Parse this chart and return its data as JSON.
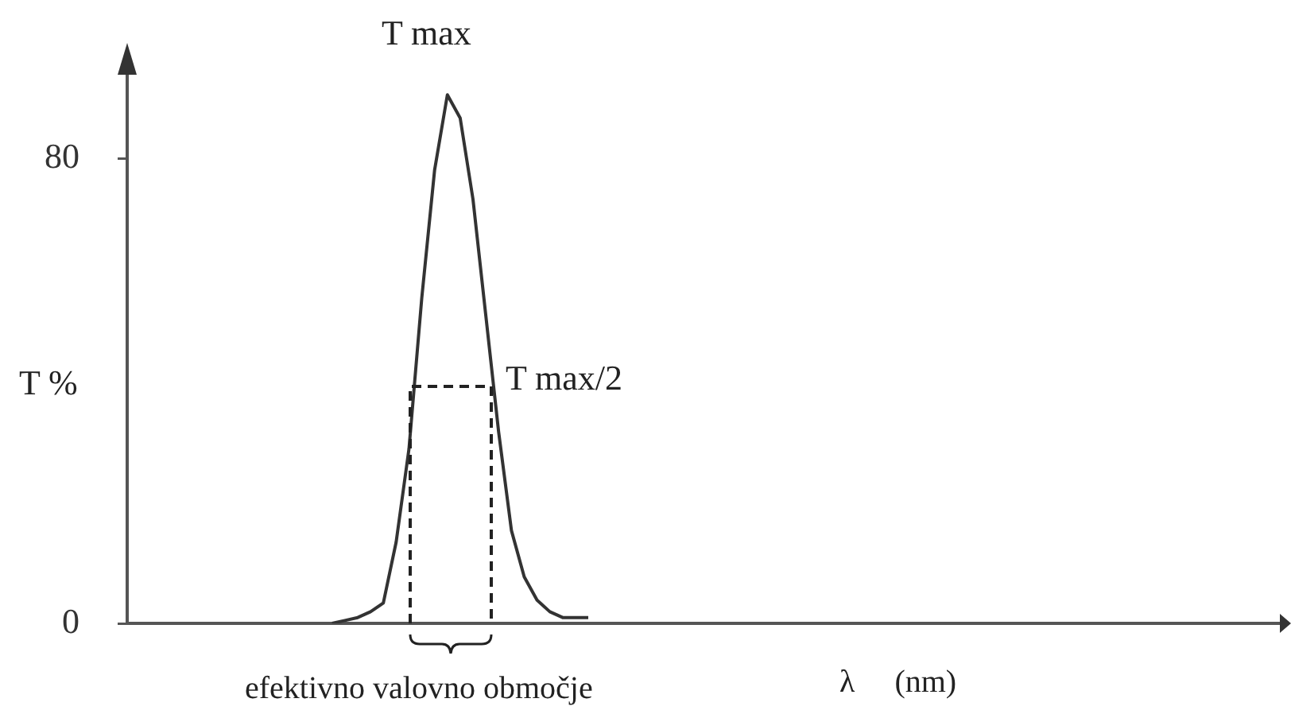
{
  "chart_data": {
    "type": "line",
    "ylabel": "T %",
    "xlabel": "λ     (nm)",
    "annotations": [
      "T max",
      "T max/2",
      "efektivno valovno območje"
    ],
    "categories": [
      null,
      null,
      null,
      null,
      null,
      null,
      null,
      null,
      null,
      null,
      null,
      null,
      null,
      null,
      null,
      null,
      null,
      null,
      null,
      null,
      null,
      null,
      null,
      null,
      null,
      null,
      null,
      null,
      null,
      null,
      null,
      null,
      null,
      null,
      null,
      null,
      null,
      null,
      null,
      null,
      null,
      null,
      null,
      null,
      null,
      null,
      null,
      null,
      null,
      null,
      null,
      null,
      null,
      null,
      null,
      null,
      null,
      null,
      null,
      null,
      null,
      null,
      null,
      null,
      null,
      null,
      null,
      null,
      null,
      null,
      null,
      null,
      null,
      null,
      null,
      null,
      null,
      null,
      null,
      null,
      null,
      null,
      null,
      null,
      null,
      null,
      null,
      null,
      null,
      null,
      null
    ],
    "values": [
      null,
      null,
      null,
      null,
      null,
      null,
      null,
      null,
      null,
      null,
      null,
      null,
      null,
      null,
      null,
      null,
      0,
      0.5,
      1,
      2,
      3.5,
      14,
      30,
      56,
      78,
      91,
      87,
      73,
      53,
      33,
      16,
      8,
      4,
      2,
      1,
      1,
      1,
      null,
      null,
      null,
      null,
      null,
      null,
      null,
      null,
      null,
      null,
      null,
      null,
      null,
      null,
      null,
      null,
      null,
      null,
      null,
      null,
      null,
      null,
      null,
      null,
      null,
      null,
      null,
      null,
      null,
      null,
      null,
      null,
      null,
      null,
      null,
      null,
      null,
      null,
      null,
      null,
      null,
      null,
      null,
      null,
      null,
      null,
      null,
      null,
      null,
      null,
      null,
      null,
      null,
      null
    ],
    "color": "#333333",
    "ylim": [
      0,
      95
    ],
    "yticks": [
      0,
      80
    ],
    "grid": false,
    "legend": false,
    "marker": "none",
    "line_style": "solid",
    "tick_labels": "y"
  }
}
